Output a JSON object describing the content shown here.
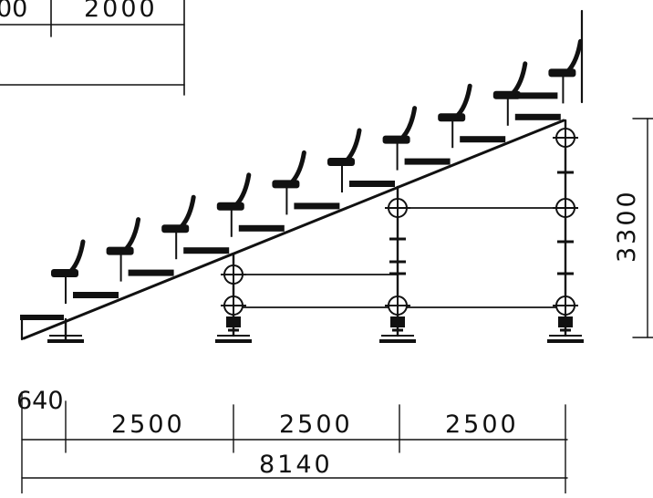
{
  "colors": {
    "ink": "#111111",
    "paper": "#ffffff"
  },
  "dimensions": {
    "top_fragment_left": "00",
    "top_fragment_right": "2000",
    "height": "3300",
    "first_offset": "640",
    "span_1": "2500",
    "span_2": "2500",
    "span_3": "2500",
    "total": "8140"
  },
  "drawing": {
    "seat_rows": 10,
    "support_frames": 3,
    "bracing_levels_per_frame": 3
  }
}
